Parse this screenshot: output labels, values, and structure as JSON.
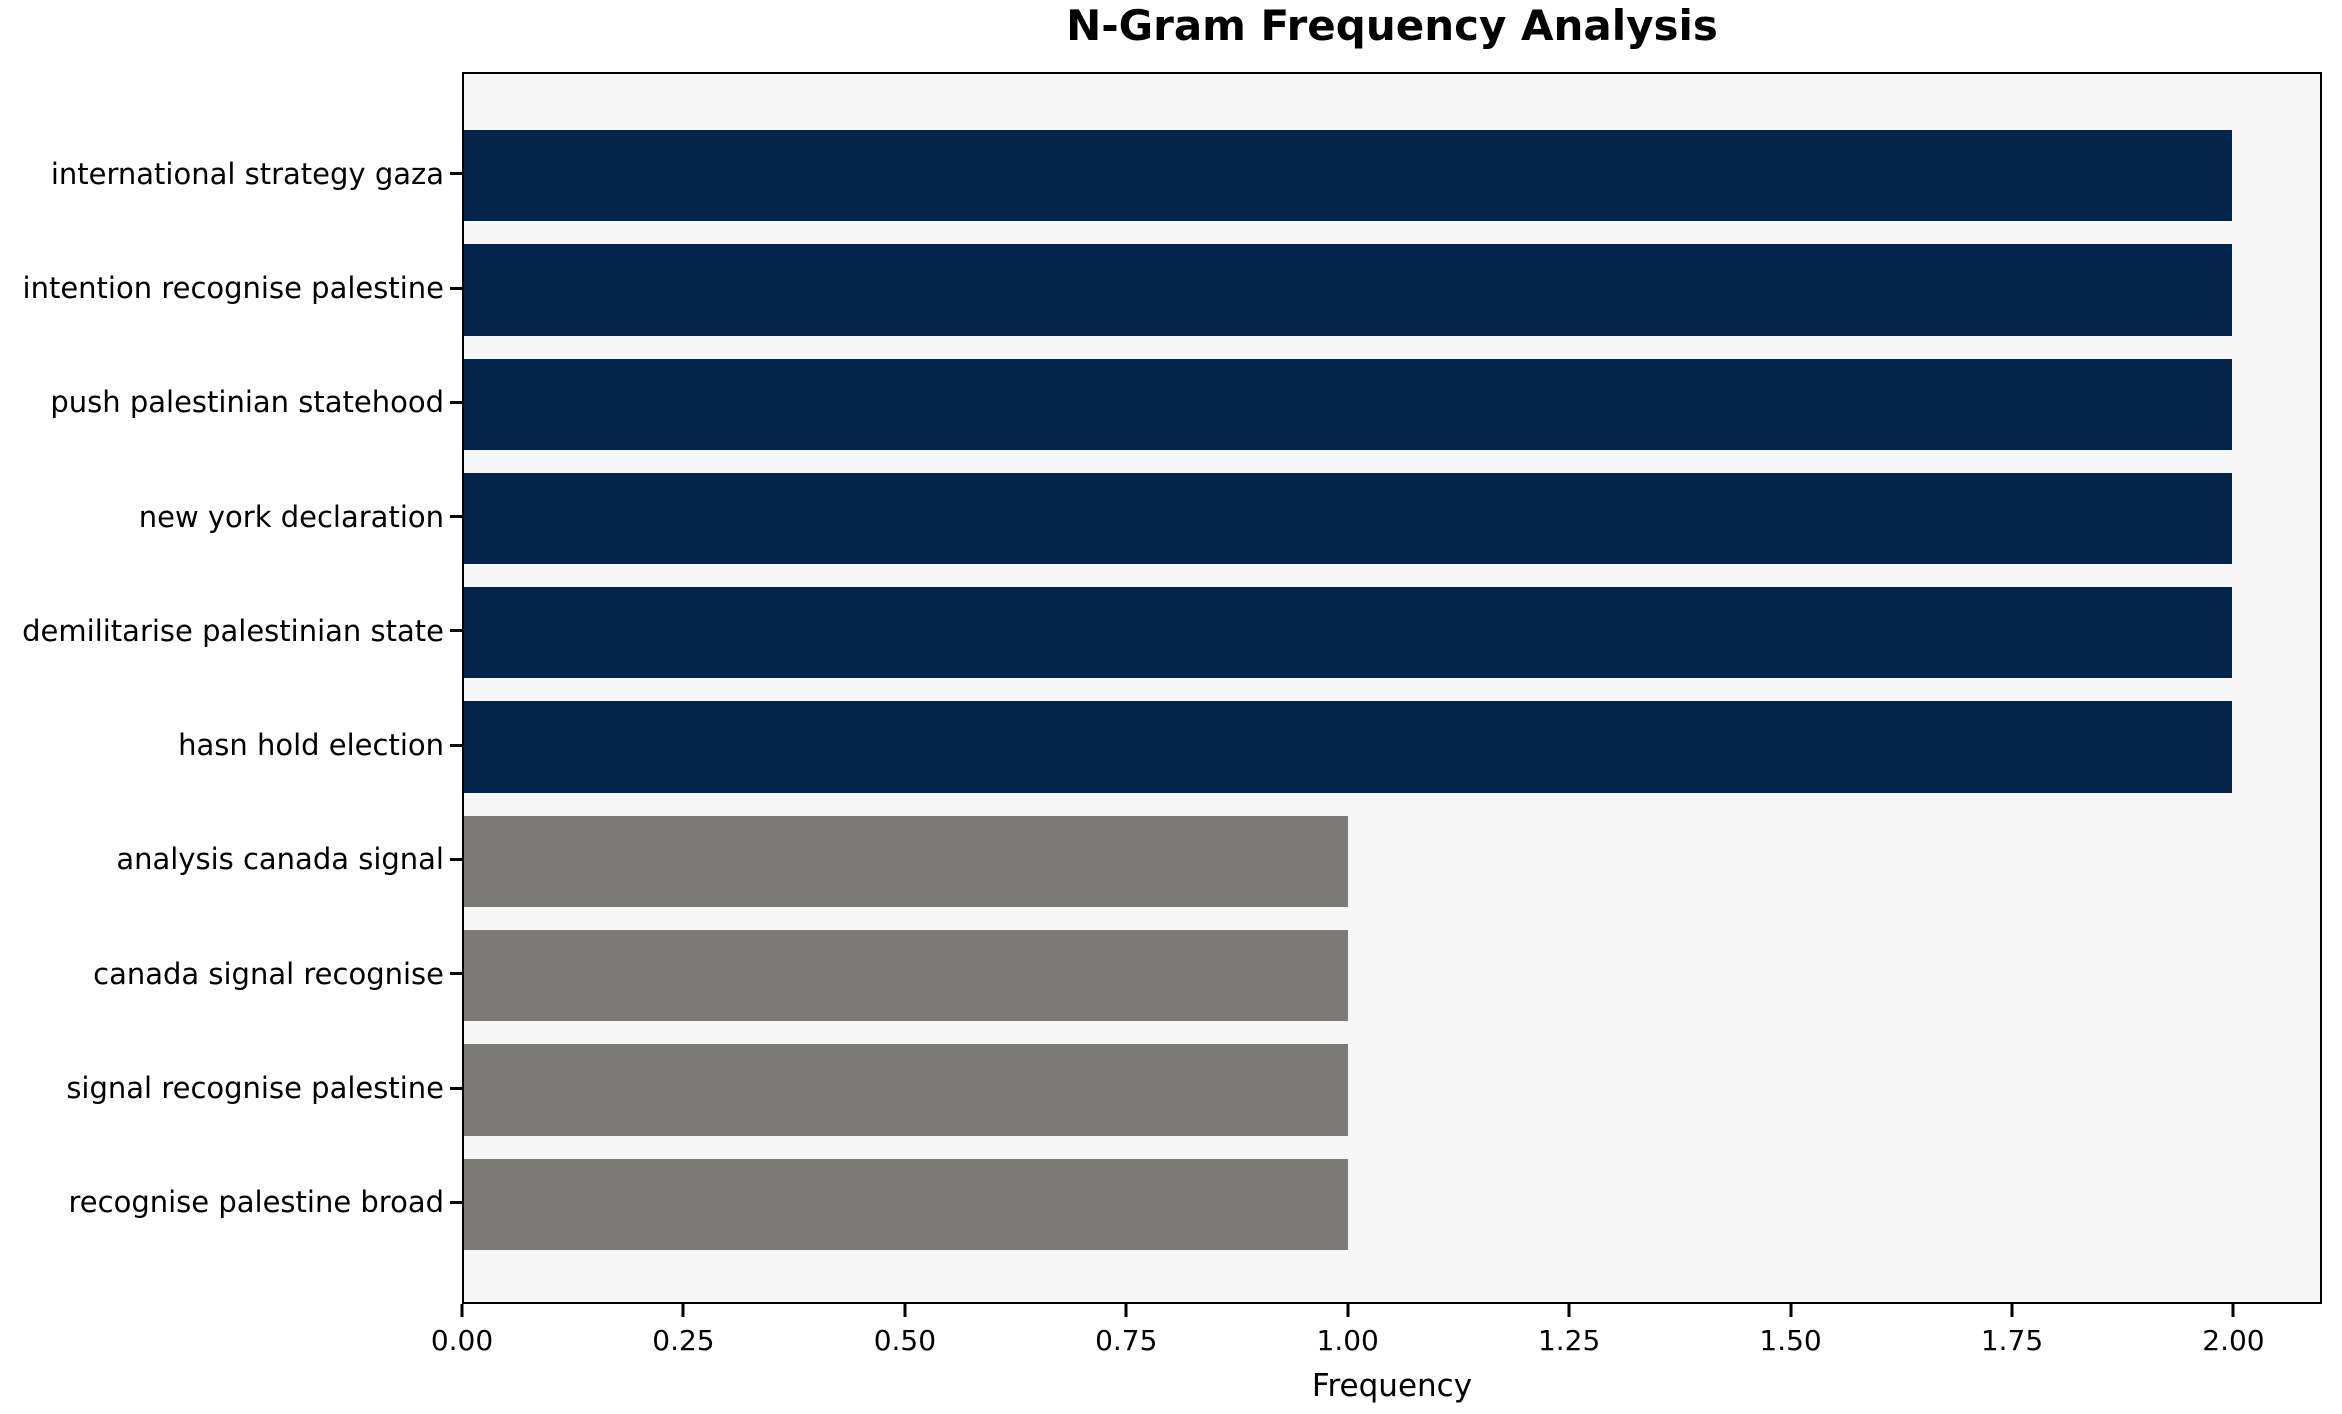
{
  "chart_data": {
    "type": "bar",
    "orientation": "horizontal",
    "title": "N-Gram Frequency Analysis",
    "xlabel": "Frequency",
    "ylabel": "",
    "categories": [
      "international strategy gaza",
      "intention recognise palestine",
      "push palestinian statehood",
      "new york declaration",
      "demilitarise palestinian state",
      "hasn hold election",
      "analysis canada signal",
      "canada signal recognise",
      "signal recognise palestine",
      "recognise palestine broad"
    ],
    "values": [
      2,
      2,
      2,
      2,
      2,
      2,
      1,
      1,
      1,
      1
    ],
    "bar_colors": [
      "#02234a",
      "#02234a",
      "#02234a",
      "#02234a",
      "#02234a",
      "#02234a",
      "#7b7a77",
      "#7b7a77",
      "#7b7a77",
      "#7b7a77"
    ],
    "xlim": [
      0,
      2.1
    ],
    "x_tick_labels": [
      "0.00",
      "0.25",
      "0.50",
      "0.75",
      "1.00",
      "1.25",
      "1.50",
      "1.75",
      "2.00"
    ],
    "bar_height_fraction": 0.8,
    "grid": false,
    "legend": null,
    "colors": {
      "bar_high": "#02234a",
      "bar_low": "#7b7a77",
      "plot_bg": "#f7f7f7",
      "fig_bg": "#ffffff",
      "axis": "#000000",
      "text": "#000000"
    }
  }
}
